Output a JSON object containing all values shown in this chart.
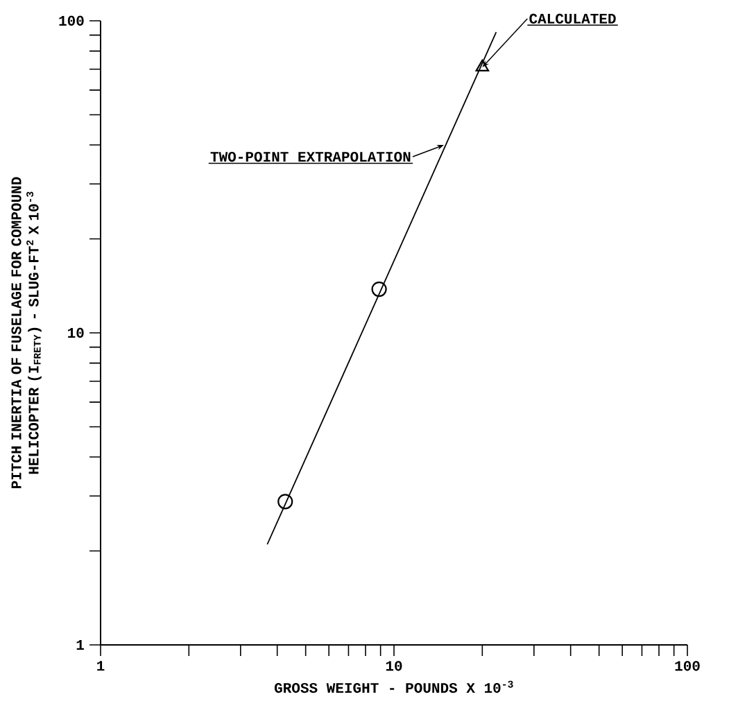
{
  "chart_data": {
    "type": "scatter",
    "xlabel": "GROSS WEIGHT - POUNDS X 10$^{-3}$",
    "ylabel": "PITCH INERTIA OF FUSELAGE FOR COMPOUND HELICOPTER (I$_{FRETY}$) - SLUG-FT$^{2}$ X 10$^{-3}$",
    "log": "xy",
    "grid": false,
    "xlim": [
      1,
      100
    ],
    "ylim": [
      1,
      100
    ],
    "xticks": [
      1,
      {
        "value": 2,
        "label": null
      },
      {
        "value": 3,
        "label": null
      },
      {
        "value": 4,
        "label": null
      },
      {
        "value": 5,
        "label": null
      },
      {
        "value": 6,
        "label": null
      },
      {
        "value": 7,
        "label": null
      },
      {
        "value": 8,
        "label": null
      },
      {
        "value": 9,
        "label": null
      },
      10,
      {
        "value": 20,
        "label": null
      },
      {
        "value": 30,
        "label": null
      },
      {
        "value": 40,
        "label": null
      },
      {
        "value": 50,
        "label": null
      },
      {
        "value": 60,
        "label": null
      },
      {
        "value": 70,
        "label": null
      },
      {
        "value": 80,
        "label": null
      },
      {
        "value": 90,
        "label": null
      },
      100
    ],
    "yticks": [
      1,
      {
        "value": 2,
        "label": null
      },
      {
        "value": 3,
        "label": null
      },
      {
        "value": 4,
        "label": null
      },
      {
        "value": 5,
        "label": null
      },
      {
        "value": 6,
        "label": null
      },
      {
        "value": 7,
        "label": null
      },
      {
        "value": 8,
        "label": null
      },
      {
        "value": 9,
        "label": null
      },
      10,
      {
        "value": 20,
        "label": null
      },
      {
        "value": 30,
        "label": null
      },
      {
        "value": 40,
        "label": null
      },
      {
        "value": 50,
        "label": null
      },
      {
        "value": 60,
        "label": null
      },
      {
        "value": 70,
        "label": null
      },
      {
        "value": 80,
        "label": null
      },
      {
        "value": 90,
        "label": null
      },
      100
    ],
    "series": [
      {
        "type": "line",
        "color": "#000000",
        "marker": "none",
        "line_style": "solid",
        "x": [
          3.7,
          22.3
        ],
        "values": [
          2.1,
          92
        ]
      },
      {
        "color": "#000000",
        "marker": "circle",
        "x": [
          4.26,
          8.9
        ],
        "values": [
          2.88,
          13.8
        ]
      },
      {
        "color": "#000000",
        "marker": "triangle",
        "x": [
          20
        ],
        "values": [
          71
        ]
      }
    ],
    "annotations": [
      {
        "text": "TWO-POINT EXTRAPOLATION",
        "x": 14.8,
        "y": 40
      },
      {
        "text": "CALCULATED",
        "x": 20,
        "y": 71
      }
    ]
  }
}
